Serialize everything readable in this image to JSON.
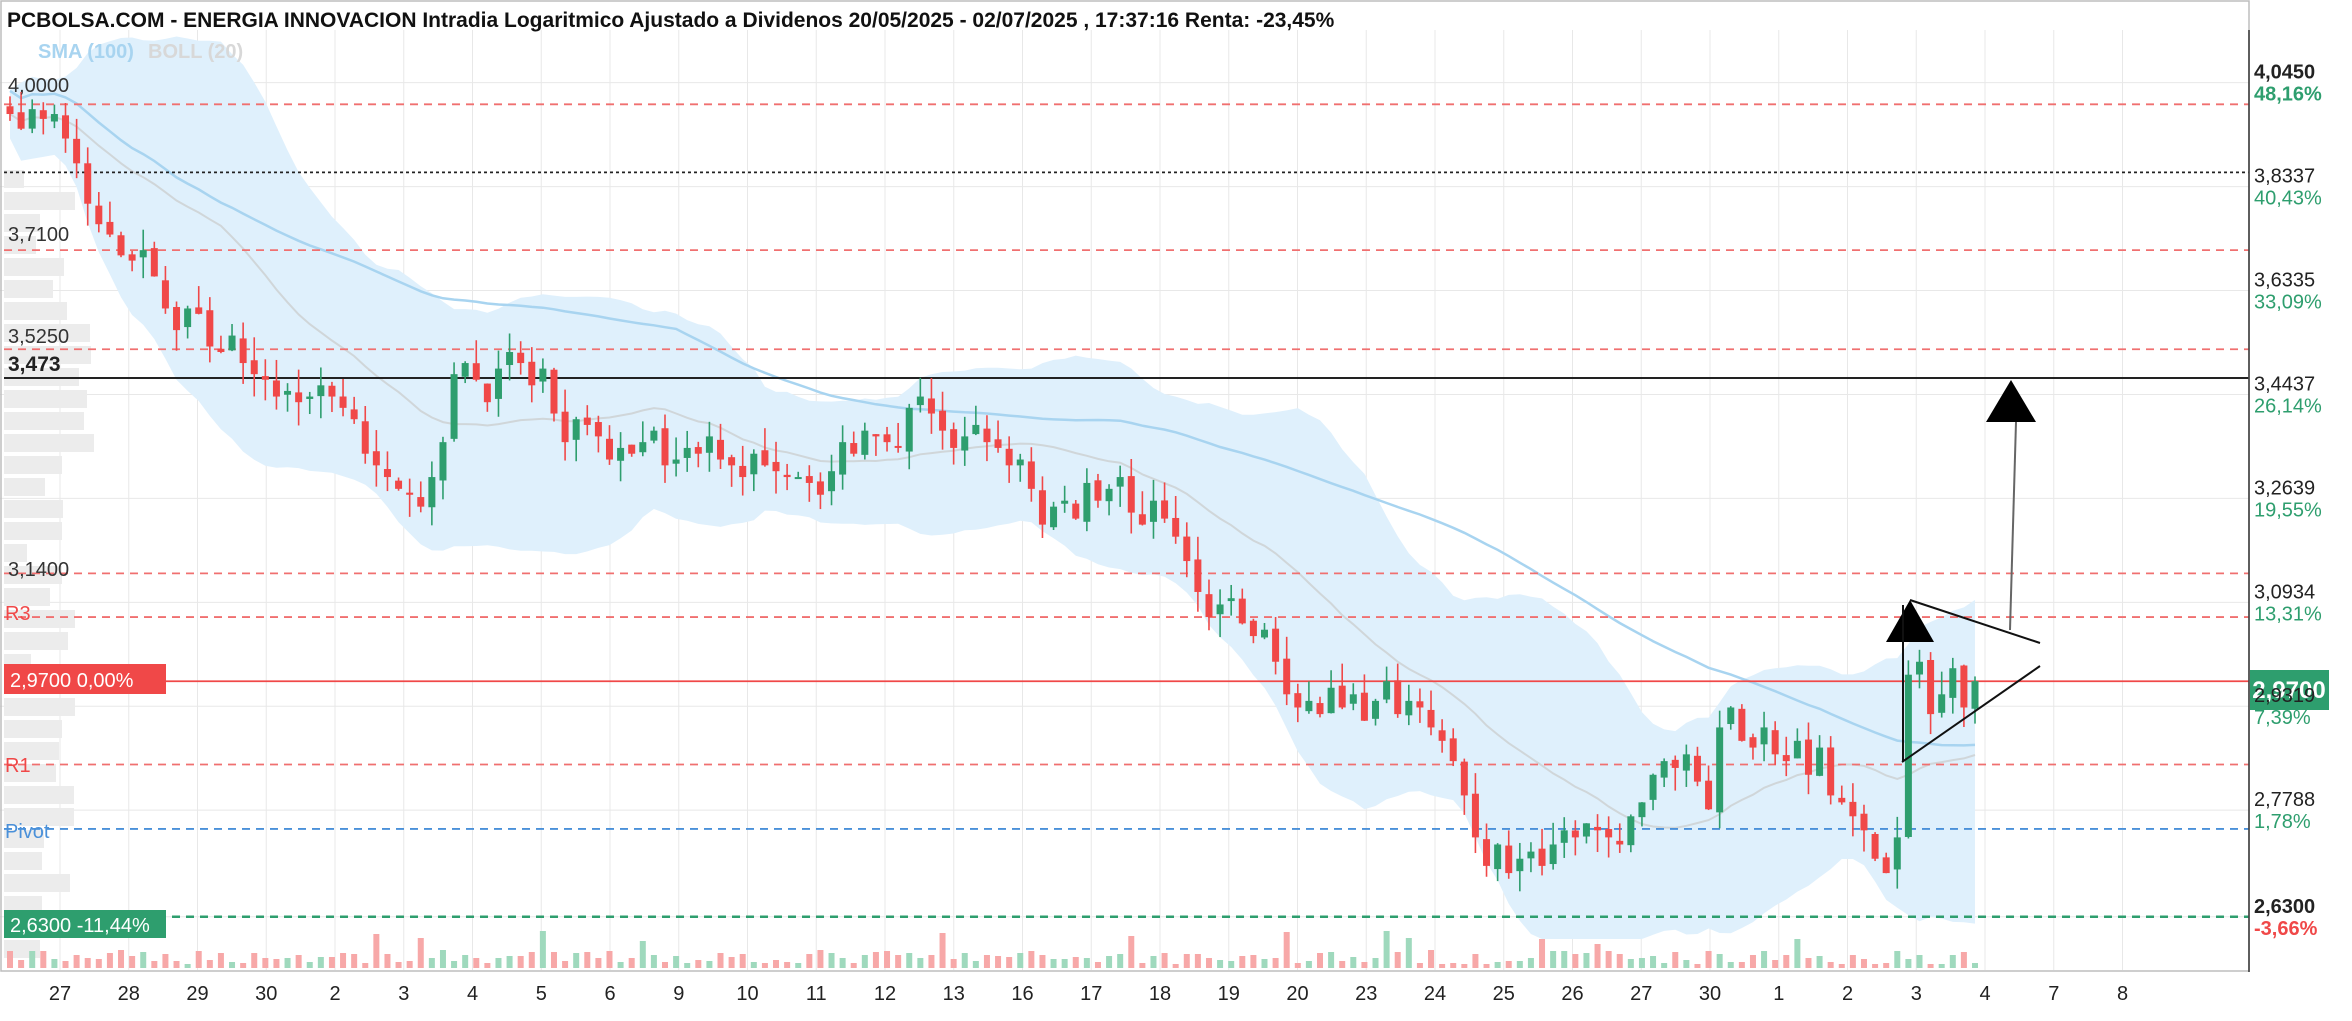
{
  "title": "PCBOLSA.COM - ENERGIA INNOVACION Intradia Logaritmico Ajustado a Dividenos 20/05/2025 - 02/07/2025 , 17:37:16 Renta: -23,45%",
  "legend": {
    "sma": "SMA (100)",
    "boll": "BOLL (20)"
  },
  "colors": {
    "up": "#2e9e6e",
    "down": "#f04848",
    "sma": "#a8d4f0",
    "band_fill": "#dff0fc",
    "boll_mid": "#cfd5d8",
    "resistance": "#f07070",
    "pivot": "#4a90d9",
    "support": "#2e9e6e",
    "current": "#f04848",
    "green_text": "#2e9e6e",
    "red_text": "#f04848",
    "grid": "#e8e8e8"
  },
  "chart_data": {
    "type": "candlestick",
    "title": "PCBOLSA.COM - ENERGIA INNOVACION Intradia Logaritmico Ajustado a Dividenos 20/05/2025 - 02/07/2025 , 17:37:16 Renta: -23,45%",
    "scale": "log",
    "ylim": [
      2.572,
      4.135
    ],
    "x_tick_labels": [
      "27",
      "28",
      "29",
      "30",
      "2",
      "3",
      "4",
      "5",
      "6",
      "9",
      "10",
      "11",
      "12",
      "13",
      "16",
      "17",
      "18",
      "19",
      "20",
      "23",
      "24",
      "25",
      "26",
      "27",
      "30",
      "1",
      "2",
      "3",
      "4",
      "7",
      "8"
    ],
    "y_axis_prices": [
      "4,0450",
      "3,8337",
      "3,6335",
      "3,4437",
      "3,2639",
      "3,0934",
      "2,9319",
      "2,7788",
      "2,6300"
    ],
    "y_axis_percents": [
      "48,16%",
      "40,43%",
      "33,09%",
      "26,14%",
      "19,55%",
      "13,31%",
      "7,39%",
      "1,78%",
      "-3,66%"
    ],
    "current_price": "2,9700",
    "closes": [
      3.98,
      3.95,
      3.99,
      3.97,
      3.98,
      3.93,
      3.88,
      3.8,
      3.76,
      3.74,
      3.7,
      3.69,
      3.71,
      3.66,
      3.6,
      3.56,
      3.6,
      3.59,
      3.53,
      3.52,
      3.55,
      3.5,
      3.48,
      3.47,
      3.44,
      3.45,
      3.43,
      3.44,
      3.46,
      3.44,
      3.42,
      3.4,
      3.34,
      3.32,
      3.3,
      3.28,
      3.27,
      3.25,
      3.3,
      3.36,
      3.48,
      3.5,
      3.47,
      3.43,
      3.49,
      3.52,
      3.5,
      3.46,
      3.49,
      3.41,
      3.36,
      3.4,
      3.39,
      3.37,
      3.33,
      3.35,
      3.34,
      3.36,
      3.38,
      3.32,
      3.33,
      3.35,
      3.34,
      3.37,
      3.33,
      3.32,
      3.3,
      3.34,
      3.32,
      3.31,
      3.3,
      3.3,
      3.29,
      3.27,
      3.31,
      3.36,
      3.34,
      3.38,
      3.37,
      3.36,
      3.35,
      3.42,
      3.44,
      3.41,
      3.38,
      3.35,
      3.37,
      3.39,
      3.36,
      3.35,
      3.32,
      3.33,
      3.28,
      3.22,
      3.25,
      3.26,
      3.23,
      3.29,
      3.26,
      3.28,
      3.3,
      3.24,
      3.22,
      3.26,
      3.23,
      3.2,
      3.16,
      3.11,
      3.07,
      3.09,
      3.1,
      3.06,
      3.04,
      3.05,
      3.0,
      2.95,
      2.93,
      2.94,
      2.92,
      2.96,
      2.93,
      2.95,
      2.91,
      2.94,
      2.97,
      2.92,
      2.94,
      2.93,
      2.9,
      2.88,
      2.85,
      2.8,
      2.74,
      2.7,
      2.73,
      2.69,
      2.71,
      2.72,
      2.7,
      2.73,
      2.75,
      2.74,
      2.76,
      2.75,
      2.74,
      2.73,
      2.77,
      2.79,
      2.83,
      2.85,
      2.84,
      2.86,
      2.82,
      2.78,
      2.9,
      2.93,
      2.88,
      2.87,
      2.9,
      2.86,
      2.85,
      2.88,
      2.83,
      2.87,
      2.8,
      2.79,
      2.77,
      2.75,
      2.71,
      2.69,
      2.74,
      2.98,
      3.0,
      2.92,
      2.95,
      2.99,
      2.93,
      2.97
    ],
    "reference_lines": [
      {
        "label": "4,0000",
        "value": 4.0,
        "style": "resistance"
      },
      {
        "label": "",
        "value": 3.862,
        "style": "black-dotted"
      },
      {
        "label": "3,7100",
        "value": 3.71,
        "style": "resistance"
      },
      {
        "label": "3,5250",
        "value": 3.525,
        "style": "resistance"
      },
      {
        "label": "3,473",
        "value": 3.473,
        "style": "black-solid"
      },
      {
        "label": "3,1400",
        "value": 3.14,
        "style": "resistance"
      },
      {
        "label": "R3",
        "value": 3.07,
        "style": "resistance"
      },
      {
        "label": "2,9700 0,00%",
        "value": 2.97,
        "style": "current"
      },
      {
        "label": "R1",
        "value": 2.845,
        "style": "resistance"
      },
      {
        "label": "Pivot",
        "value": 2.752,
        "style": "pivot"
      },
      {
        "label": "2,6300 -11,44%",
        "value": 2.63,
        "style": "support"
      }
    ]
  },
  "labels": {
    "left_4000": "4,0000",
    "left_3710": "3,7100",
    "left_3525": "3,5250",
    "left_3473": "3,473",
    "left_3140": "3,1400",
    "left_r3": "R3",
    "left_current": "2,9700  0,00%",
    "left_r1": "R1",
    "left_pivot": "Pivot",
    "left_support": "2,6300  -11,44%",
    "current_tag": "2,9700"
  }
}
